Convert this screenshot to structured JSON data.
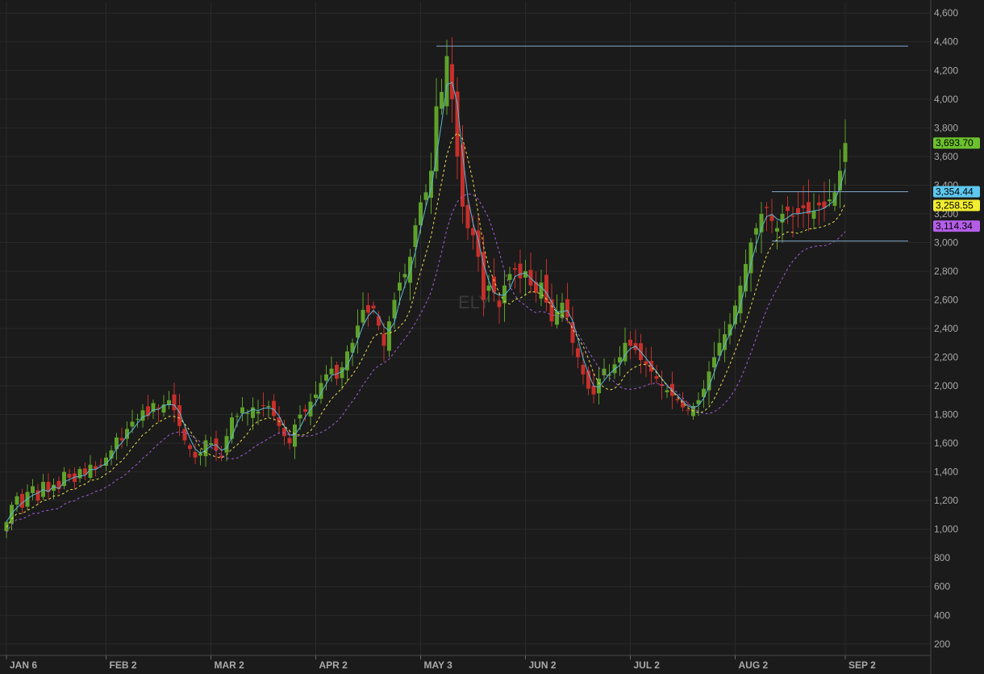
{
  "chart_data": {
    "type": "candlestick",
    "symbol": "ELY",
    "ylim": [
      120,
      4680
    ],
    "yticks": [
      200,
      400,
      600,
      800,
      1000,
      1200,
      1400,
      1600,
      1800,
      2000,
      2200,
      2400,
      2600,
      2800,
      3000,
      3200,
      3400,
      3600,
      3800,
      4000,
      4200,
      4400,
      4600
    ],
    "ytick_labels": [
      "200",
      "400",
      "600",
      "800",
      "1,000",
      "1,200",
      "1,400",
      "1,600",
      "1,800",
      "2,000",
      "2,200",
      "2,400",
      "2,600",
      "2,800",
      "3,000",
      "3,200",
      "3,400",
      "3,600",
      "3,800",
      "4,000",
      "4,200",
      "4,400",
      "4,600"
    ],
    "xtick_labels": [
      {
        "label": "JAN 6",
        "bar": 0
      },
      {
        "label": "FEB 2",
        "bar": 19
      },
      {
        "label": "MAR 2",
        "bar": 39
      },
      {
        "label": "APR 2",
        "bar": 59
      },
      {
        "label": "MAY 3",
        "bar": 79
      },
      {
        "label": "JUN 2",
        "bar": 99
      },
      {
        "label": "JUL 2",
        "bar": 119
      },
      {
        "label": "AUG 2",
        "bar": 139
      },
      {
        "label": "SEP 2",
        "bar": 160
      }
    ],
    "closes": [
      1050,
      1170,
      1230,
      1150,
      1260,
      1300,
      1200,
      1330,
      1260,
      1310,
      1280,
      1400,
      1360,
      1330,
      1420,
      1380,
      1450,
      1420,
      1450,
      1500,
      1550,
      1640,
      1620,
      1700,
      1750,
      1770,
      1830,
      1790,
      1880,
      1840,
      1870,
      1900,
      1830,
      1720,
      1620,
      1560,
      1500,
      1530,
      1620,
      1600,
      1550,
      1500,
      1650,
      1780,
      1790,
      1850,
      1810,
      1850,
      1820,
      1860,
      1860,
      1790,
      1720,
      1650,
      1600,
      1730,
      1800,
      1820,
      1890,
      1940,
      2020,
      2080,
      2120,
      2050,
      2130,
      2240,
      2300,
      2420,
      2530,
      2510,
      2540,
      2420,
      2280,
      2450,
      2600,
      2720,
      2780,
      2900,
      3120,
      3280,
      3350,
      3500,
      3950,
      4050,
      4300,
      4000,
      3600,
      3250,
      3100,
      3050,
      2900,
      2600,
      2700,
      2650,
      2550,
      2700,
      2780,
      2810,
      2750,
      2800,
      2700,
      2650,
      2720,
      2580,
      2450,
      2520,
      2580,
      2480,
      2300,
      2200,
      2080,
      1980,
      1940,
      2050,
      2120,
      2080,
      2150,
      2200,
      2300,
      2280,
      2250,
      2180,
      2150,
      2100,
      2050,
      2000,
      1970,
      1930,
      1900,
      1850,
      1830,
      1860,
      1900,
      1980,
      2100,
      2200,
      2300,
      2360,
      2430,
      2560,
      2700,
      2850,
      3000,
      3100,
      3200,
      3240,
      3150,
      3100,
      3200,
      3220,
      3180,
      3200,
      3240,
      3200,
      3220,
      3260,
      3240,
      3300,
      3350,
      3500,
      3693.7
    ],
    "volatility": [
      0.04,
      0.07
    ],
    "series": [
      {
        "name": "",
        "color": "#5bb7d8",
        "dash": "none",
        "period": 3
      },
      {
        "name": "",
        "color": "#e8e050",
        "dash": "3,3",
        "period": 6
      },
      {
        "name": "",
        "color": "#a060d8",
        "dash": "3,3",
        "period": 11
      }
    ],
    "hlines": [
      {
        "value": 4370,
        "from_bar": 82,
        "to_bar": 172,
        "color": "#7fa8c8"
      },
      {
        "value": 3354.44,
        "from_bar": 146,
        "to_bar": 172,
        "color": "#7fa8c8"
      },
      {
        "value": 3010,
        "from_bar": 146,
        "to_bar": 172,
        "color": "#7fa8c8"
      }
    ],
    "price_tags": [
      {
        "value": 3693.7,
        "label": "3,693.70",
        "bg": "#6cc12d",
        "fg": "#000000"
      },
      {
        "value": 3354.44,
        "label": "3,354.44",
        "bg": "#5ec8f0",
        "fg": "#000000"
      },
      {
        "value": 3258.55,
        "label": "3,258.55",
        "bg": "#f2ee30",
        "fg": "#000000"
      },
      {
        "value": 3114.34,
        "label": "3,114.34",
        "bg": "#b45ee8",
        "fg": "#000000"
      }
    ],
    "colors": {
      "up": "#5fa12a",
      "down": "#c62f2a",
      "grid": "#2a2a2a",
      "background": "#1b1b1b",
      "axis": "#4a4a4a"
    }
  }
}
